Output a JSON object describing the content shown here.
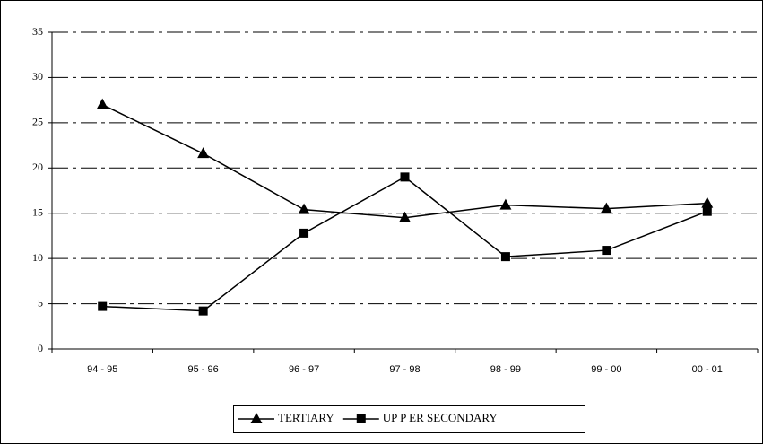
{
  "chart_data": {
    "type": "line",
    "categories": [
      "94 - 95",
      "95 - 96",
      "96 - 97",
      "97 - 98",
      "98 - 99",
      "99 - 00",
      "00 - 01"
    ],
    "series": [
      {
        "name": "TERTIARY",
        "color": "#000000",
        "marker": "triangle",
        "values": [
          27.0,
          21.6,
          15.4,
          14.5,
          15.9,
          15.5,
          16.1
        ]
      },
      {
        "name": "UP P ER SECONDARY",
        "color": "#000000",
        "marker": "square",
        "values": [
          4.7,
          4.2,
          12.8,
          19.0,
          10.2,
          10.9,
          15.2
        ]
      }
    ],
    "ylim": [
      0,
      35
    ],
    "yticks": [
      0,
      5,
      10,
      15,
      20,
      25,
      30,
      35
    ],
    "grid": true,
    "legend": "bottom"
  }
}
